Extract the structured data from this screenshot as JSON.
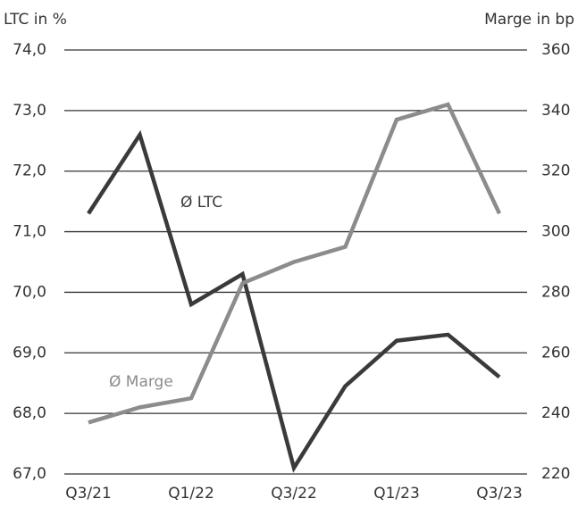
{
  "chart_data": {
    "type": "line",
    "ylabel": "LTC in %",
    "y2label": "Marge in bp",
    "categories": [
      "Q3/21",
      null,
      "Q1/22",
      null,
      "Q3/22",
      null,
      "Q1/23",
      null,
      "Q3/23"
    ],
    "series": [
      {
        "name": "Ø LTC",
        "color": "#3a3a3a",
        "axis": "y",
        "values": [
          71.3,
          72.6,
          69.8,
          70.3,
          67.1,
          68.45,
          69.2,
          69.3,
          68.6
        ]
      },
      {
        "name": "Ø Marge",
        "color": "#8c8c8c",
        "axis": "y2",
        "values": [
          237,
          242,
          245,
          283,
          290,
          295,
          337,
          342,
          306
        ]
      }
    ],
    "ylim": [
      67,
      74
    ],
    "yticks": [
      {
        "value": 67,
        "label": "67,0"
      },
      {
        "value": 68,
        "label": "68,0"
      },
      {
        "value": 69,
        "label": "69,0"
      },
      {
        "value": 70,
        "label": "70,0"
      },
      {
        "value": 71,
        "label": "71,0"
      },
      {
        "value": 72,
        "label": "72,0"
      },
      {
        "value": 73,
        "label": "73,0"
      },
      {
        "value": 74,
        "label": "74,0"
      }
    ],
    "y2lim": [
      220,
      360
    ],
    "y2ticks": [
      220,
      240,
      260,
      280,
      300,
      320,
      340,
      360
    ],
    "grid": true
  }
}
